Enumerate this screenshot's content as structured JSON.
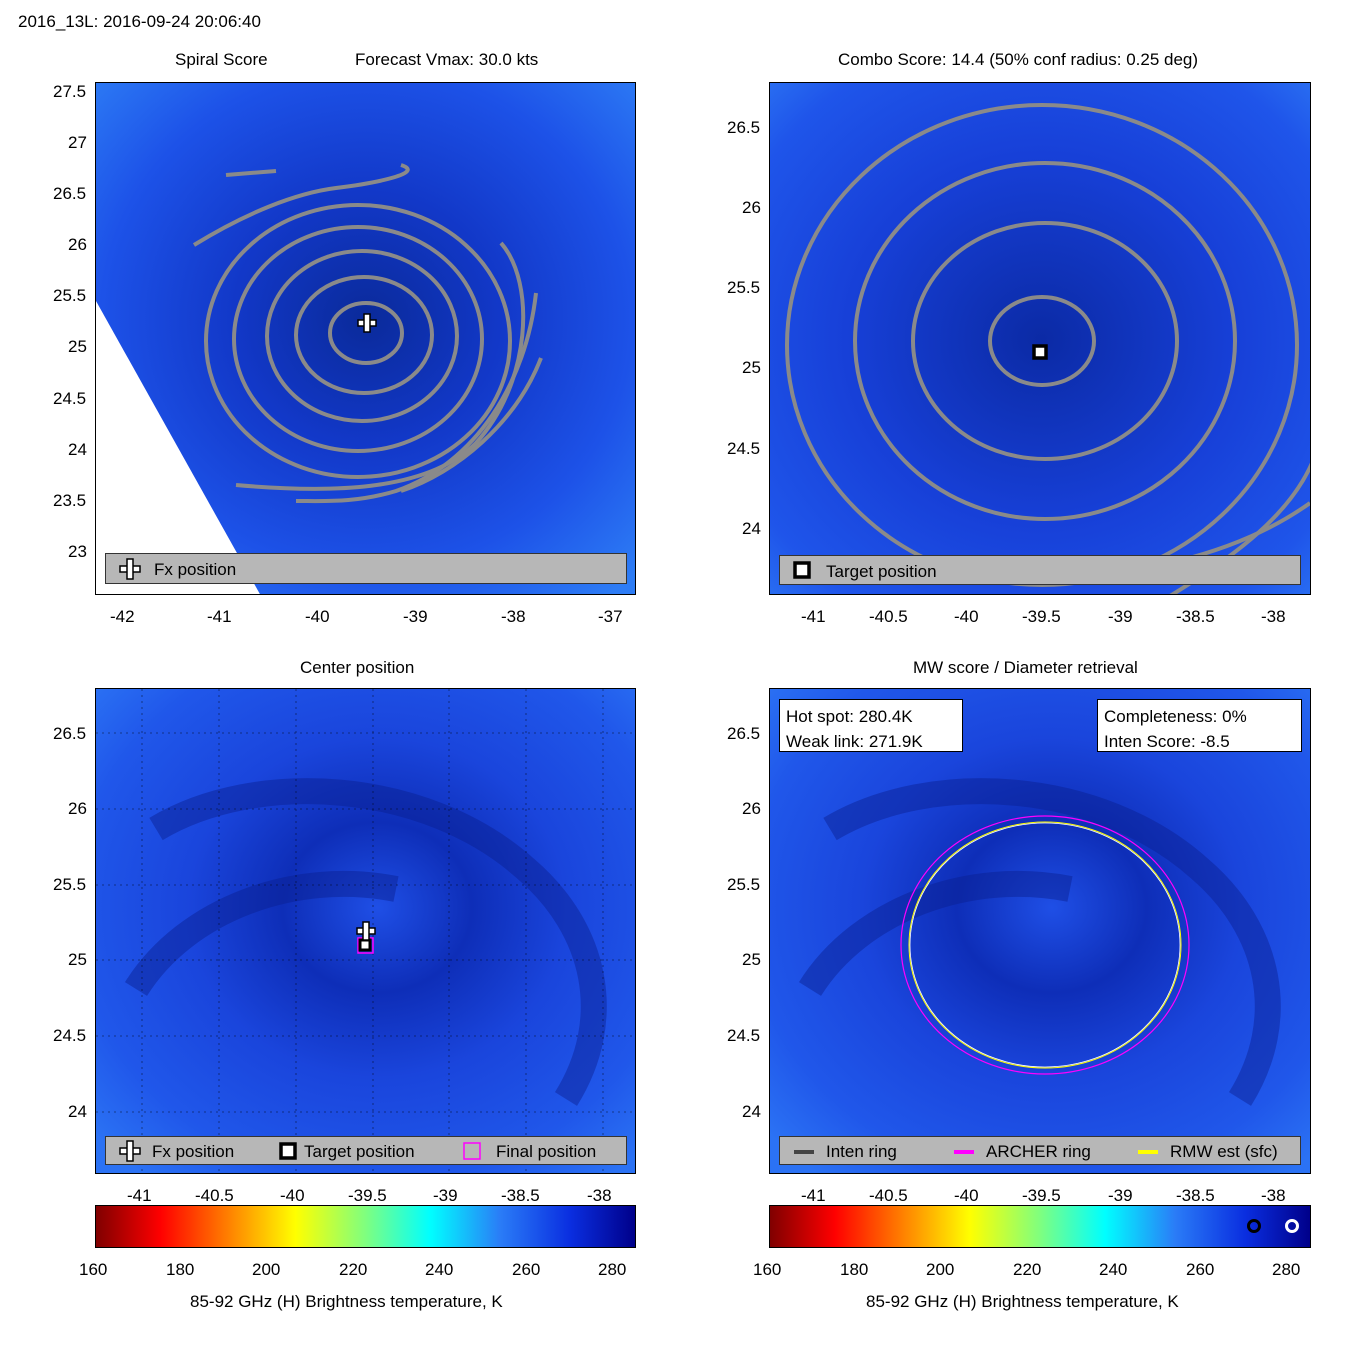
{
  "header": {
    "title": "2016_13L: 2016-09-24 20:06:40"
  },
  "colors": {
    "contour": "#8a8a8a",
    "legend_bg": "#b7b7b7",
    "archer_ring": "#ff00ff",
    "rmw_ring": "#ffff00",
    "inten_ring": "#444444",
    "marker_white": "#ffffff",
    "marker_black": "#000000"
  },
  "panels": {
    "spiral": {
      "title_left": "Spiral Score",
      "title_right": "Forecast Vmax: 30.0 kts",
      "legend": [
        "Fx position"
      ],
      "xticks": [
        "-42",
        "-41",
        "-40",
        "-39",
        "-38",
        "-37"
      ],
      "yticks": [
        "27.5",
        "27",
        "26.5",
        "26",
        "25.5",
        "25",
        "24.5",
        "24",
        "23.5",
        "23"
      ]
    },
    "combo": {
      "title": "Combo Score: 14.4  (50% conf radius: 0.25 deg)",
      "legend": [
        "Target position"
      ],
      "xticks": [
        "-41",
        "-40.5",
        "-40",
        "-39.5",
        "-39",
        "-38.5",
        "-38"
      ],
      "yticks": [
        "26.5",
        "26",
        "25.5",
        "25",
        "24.5",
        "24"
      ]
    },
    "center": {
      "title": "Center position",
      "legend": [
        "Fx position",
        "Target position",
        "Final position"
      ],
      "xticks": [
        "-41",
        "-40.5",
        "-40",
        "-39.5",
        "-39",
        "-38.5",
        "-38"
      ],
      "yticks": [
        "26.5",
        "26",
        "25.5",
        "25",
        "24.5",
        "24"
      ]
    },
    "mw": {
      "title": "MW score / Diameter retrieval",
      "info_left": [
        "Hot spot: 280.4K",
        "Weak link: 271.9K"
      ],
      "info_right": [
        "Completeness: 0%",
        "Inten Score: -8.5"
      ],
      "legend": [
        "Inten ring",
        "ARCHER ring",
        "RMW est (sfc)"
      ],
      "xticks": [
        "-41",
        "-40.5",
        "-40",
        "-39.5",
        "-39",
        "-38.5",
        "-38"
      ],
      "yticks": [
        "26.5",
        "26",
        "25.5",
        "25",
        "24.5",
        "24"
      ]
    }
  },
  "colorbar": {
    "ticks": [
      "160",
      "180",
      "200",
      "220",
      "240",
      "260",
      "280"
    ],
    "label": "85-92 GHz (H) Brightness temperature, K"
  },
  "chart_data": [
    {
      "type": "heatmap",
      "title": "Spiral Score   Forecast Vmax: 30.0 kts",
      "x_range": [
        -42.3,
        -36.8
      ],
      "y_range": [
        22.55,
        27.6
      ],
      "markers": [
        {
          "name": "Fx position",
          "lon": -39.5,
          "lat": 25.2
        }
      ],
      "contours": "spiral score, gray"
    },
    {
      "type": "heatmap",
      "title": "Combo Score: 14.4  (50% conf radius: 0.25 deg)",
      "x_range": [
        -41.3,
        -37.8
      ],
      "y_range": [
        23.6,
        26.8
      ],
      "markers": [
        {
          "name": "Target position",
          "lon": -39.55,
          "lat": 25.1
        }
      ]
    },
    {
      "type": "heatmap",
      "title": "Center position",
      "x_range": [
        -41.3,
        -37.8
      ],
      "y_range": [
        23.6,
        26.8
      ],
      "markers": [
        {
          "name": "Fx position",
          "lon": -39.5,
          "lat": 25.2
        },
        {
          "name": "Target position",
          "lon": -39.5,
          "lat": 25.1
        },
        {
          "name": "Final position",
          "lon": -39.5,
          "lat": 25.1
        }
      ]
    },
    {
      "type": "heatmap",
      "title": "MW score / Diameter retrieval",
      "x_range": [
        -41.3,
        -37.8
      ],
      "y_range": [
        23.6,
        26.8
      ],
      "rings": [
        {
          "name": "ARCHER ring",
          "center": [
            -39.5,
            25.1
          ],
          "radius_deg": 0.93
        },
        {
          "name": "RMW est (sfc)",
          "center": [
            -39.5,
            25.1
          ],
          "radius_deg": 0.88
        }
      ],
      "hot_spot_K": 280.4,
      "weak_link_K": 271.9,
      "completeness_pct": 0,
      "inten_score": -8.5
    }
  ]
}
